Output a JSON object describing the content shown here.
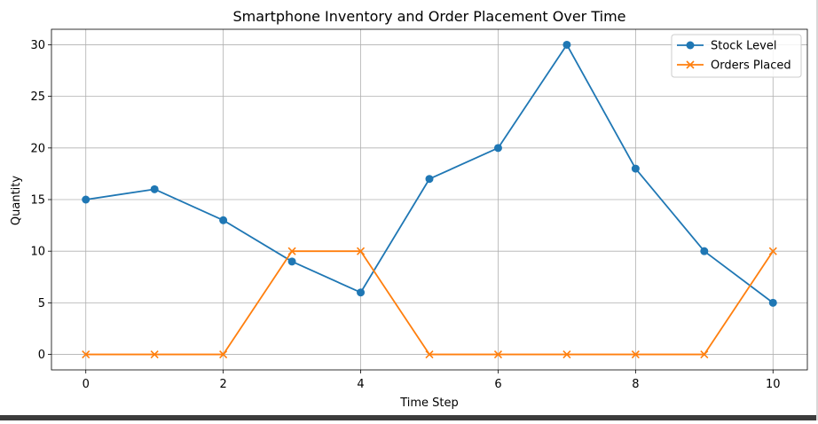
{
  "chart_data": {
    "type": "line",
    "title": "Smartphone Inventory and Order Placement Over Time",
    "xlabel": "Time Step",
    "ylabel": "Quantity",
    "x": [
      0,
      1,
      2,
      3,
      4,
      5,
      6,
      7,
      8,
      9,
      10
    ],
    "xlim": [
      -0.5,
      10.5
    ],
    "ylim": [
      -1.5,
      31.5
    ],
    "xticks": [
      0,
      2,
      4,
      6,
      8,
      10
    ],
    "yticks": [
      0,
      5,
      10,
      15,
      20,
      25,
      30
    ],
    "grid": true,
    "legend_position": "top-right",
    "series": [
      {
        "name": "Stock Level",
        "marker": "circle",
        "color": "#1f77b4",
        "values": [
          15,
          16,
          13,
          9,
          6,
          17,
          20,
          30,
          18,
          10,
          5
        ]
      },
      {
        "name": "Orders Placed",
        "marker": "x",
        "color": "#ff7f0e",
        "values": [
          0,
          0,
          0,
          10,
          10,
          0,
          0,
          0,
          0,
          0,
          10
        ]
      }
    ]
  }
}
